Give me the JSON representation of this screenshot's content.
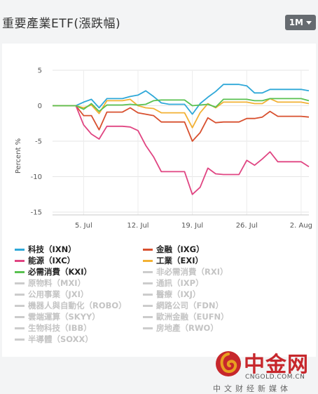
{
  "header": {
    "title": "重要產業ETF(漲跌幅)",
    "range_label": "1M"
  },
  "chart_data": {
    "type": "line",
    "xlabel": "",
    "ylabel": "Percent %",
    "ylim": [
      -15,
      5
    ],
    "yticks": [
      5,
      0,
      -5,
      -10,
      -15
    ],
    "xticks": [
      {
        "label": "5. Jul",
        "day": 5
      },
      {
        "label": "12. Jul",
        "day": 12
      },
      {
        "label": "19. Jul",
        "day": 19
      },
      {
        "label": "26. Jul",
        "day": 26
      },
      {
        "label": "2. Aug",
        "day": 33
      }
    ],
    "x": [
      1,
      2,
      3,
      4,
      5,
      6,
      7,
      8,
      9,
      10,
      11,
      12,
      13,
      14,
      15,
      16,
      17,
      18,
      19,
      20,
      21,
      22,
      23,
      24,
      25,
      26,
      27,
      28,
      29,
      30,
      31,
      32,
      33,
      34
    ],
    "grid": true,
    "series": [
      {
        "name": "科技(IXN)",
        "color": "#2fa8d8",
        "values": [
          0,
          0,
          0,
          0,
          0.5,
          0.9,
          -0.3,
          1.0,
          1.0,
          1.0,
          1.3,
          1.5,
          2.1,
          1.3,
          0.4,
          0.2,
          0.2,
          0.2,
          -1.2,
          0.3,
          1.2,
          2.0,
          3.0,
          3.0,
          3.0,
          2.8,
          1.8,
          1.8,
          2.3,
          2.3,
          2.3,
          2.3,
          2.3,
          2.1
        ]
      },
      {
        "name": "金融(IXG)",
        "color": "#d8502f",
        "values": [
          0,
          0,
          0,
          0,
          -1.4,
          -1.4,
          -3.4,
          -0.9,
          -0.9,
          -0.9,
          -0.3,
          -1.0,
          -1.2,
          -1.4,
          -2.3,
          -2.3,
          -2.3,
          -2.3,
          -5.0,
          -3.8,
          -1.7,
          -2.4,
          -2.3,
          -2.3,
          -2.3,
          -1.8,
          -1.8,
          -1.6,
          -0.8,
          -1.5,
          -1.5,
          -1.5,
          -1.5,
          -1.6
        ]
      },
      {
        "name": "能源(IXC)",
        "color": "#e04582",
        "values": [
          0,
          0,
          0,
          0,
          -2.7,
          -4.0,
          -4.7,
          -2.9,
          -2.9,
          -2.9,
          -3.0,
          -3.5,
          -5.6,
          -7.2,
          -9.3,
          -9.3,
          -9.3,
          -9.3,
          -12.5,
          -11.5,
          -8.8,
          -9.6,
          -9.7,
          -9.7,
          -9.7,
          -7.7,
          -8.4,
          -7.5,
          -6.5,
          -7.9,
          -7.9,
          -7.9,
          -7.9,
          -8.6
        ]
      },
      {
        "name": "工業(EXI)",
        "color": "#f2b134",
        "values": [
          0,
          0,
          0,
          0,
          -0.3,
          0.1,
          -1.1,
          0.7,
          0.7,
          0.7,
          0.9,
          0,
          -0.3,
          -0.4,
          -1.0,
          -1.0,
          -1.0,
          -1.0,
          -3.1,
          -1.0,
          0.3,
          -0.3,
          0.5,
          0.5,
          0.5,
          0.5,
          0.3,
          0.3,
          1.0,
          0.5,
          0.5,
          0.5,
          0.5,
          0.3
        ]
      },
      {
        "name": "必需消費(KXI)",
        "color": "#59c150",
        "values": [
          0,
          0,
          0,
          0,
          -0.5,
          0.3,
          -0.8,
          0.1,
          0.1,
          0.1,
          0.2,
          0.1,
          0.2,
          0.7,
          0.8,
          0.8,
          0.8,
          0.8,
          0.0,
          0.1,
          0.2,
          -0.2,
          0.9,
          0.9,
          0.9,
          0.9,
          0.7,
          0.7,
          1.0,
          1.0,
          1.0,
          1.0,
          1.0,
          0.7
        ]
      }
    ],
    "legend": {
      "placement": "bottom",
      "items": [
        {
          "label": "科技（IXN）",
          "color": "#2fa8d8",
          "active": true
        },
        {
          "label": "金融（IXG）",
          "color": "#d8502f",
          "active": true
        },
        {
          "label": "能源（IXC）",
          "color": "#e04582",
          "active": true
        },
        {
          "label": "工業（EXI）",
          "color": "#f2b134",
          "active": true
        },
        {
          "label": "必需消費（KXI）",
          "color": "#59c150",
          "active": true
        },
        {
          "label": "非必需消費（RXI）",
          "color": "#cccccc",
          "active": false
        },
        {
          "label": "原物料（MXI）",
          "color": "#cccccc",
          "active": false
        },
        {
          "label": "通訊（IXP）",
          "color": "#cccccc",
          "active": false
        },
        {
          "label": "公用事業（JXI）",
          "color": "#cccccc",
          "active": false
        },
        {
          "label": "醫療（IXJ）",
          "color": "#cccccc",
          "active": false
        },
        {
          "label": "機器人與自動化（ROBO）",
          "color": "#cccccc",
          "active": false
        },
        {
          "label": "網路公司（FDN）",
          "color": "#cccccc",
          "active": false
        },
        {
          "label": "雲端運算（SKYY）",
          "color": "#cccccc",
          "active": false
        },
        {
          "label": "歐洲金融（EUFN）",
          "color": "#cccccc",
          "active": false
        },
        {
          "label": "生物科技（IBB）",
          "color": "#cccccc",
          "active": false
        },
        {
          "label": "房地產（RWO）",
          "color": "#cccccc",
          "active": false
        },
        {
          "label": "半導體（SOXX）",
          "color": "#cccccc",
          "active": false
        }
      ]
    }
  },
  "watermark": {
    "brand": "中金网",
    "url": "CNGOLD.COM.CN",
    "tagline": "中文财经新媒体",
    "colors": {
      "red": "#c7272c",
      "gold": "#e8a020"
    }
  }
}
